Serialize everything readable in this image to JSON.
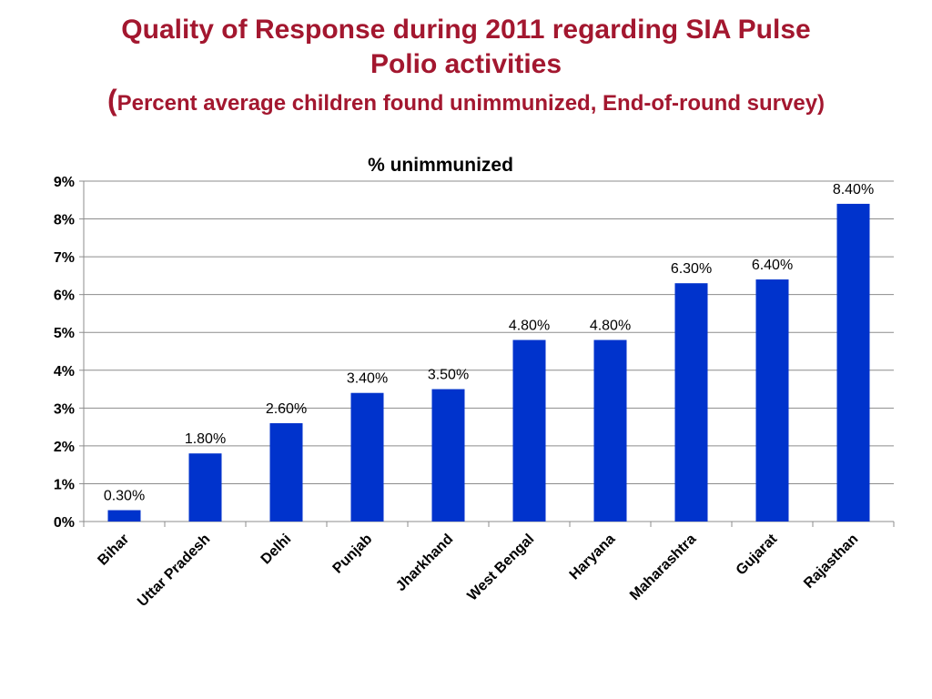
{
  "slide": {
    "title_line1": "Quality of Response during 2011 regarding SIA Pulse",
    "title_line2": "Polio activities",
    "subtitle_open": "(",
    "subtitle_text": "Percent average children found unimmunized, End-of-round survey",
    "subtitle_close": ")"
  },
  "colors": {
    "title": "#a3172f",
    "bar": "#0033cc"
  },
  "chart_data": {
    "type": "bar",
    "title": "% unimmunized",
    "xlabel": "",
    "ylabel": "",
    "categories": [
      "Bihar",
      "Uttar Pradesh",
      "Delhi",
      "Punjab",
      "Jharkhand",
      "West Bengal",
      "Haryana",
      "Maharashtra",
      "Gujarat",
      "Rajasthan"
    ],
    "values": [
      0.3,
      1.8,
      2.6,
      3.4,
      3.5,
      4.8,
      4.8,
      6.3,
      6.4,
      8.4
    ],
    "data_labels": [
      "0.30%",
      "1.80%",
      "2.60%",
      "3.40%",
      "3.50%",
      "4.80%",
      "4.80%",
      "6.30%",
      "6.40%",
      "8.40%"
    ],
    "ylim": [
      0,
      9
    ],
    "yticks": [
      "0%",
      "1%",
      "2%",
      "3%",
      "4%",
      "5%",
      "6%",
      "7%",
      "8%",
      "9%"
    ],
    "grid": true,
    "legend": "none"
  }
}
